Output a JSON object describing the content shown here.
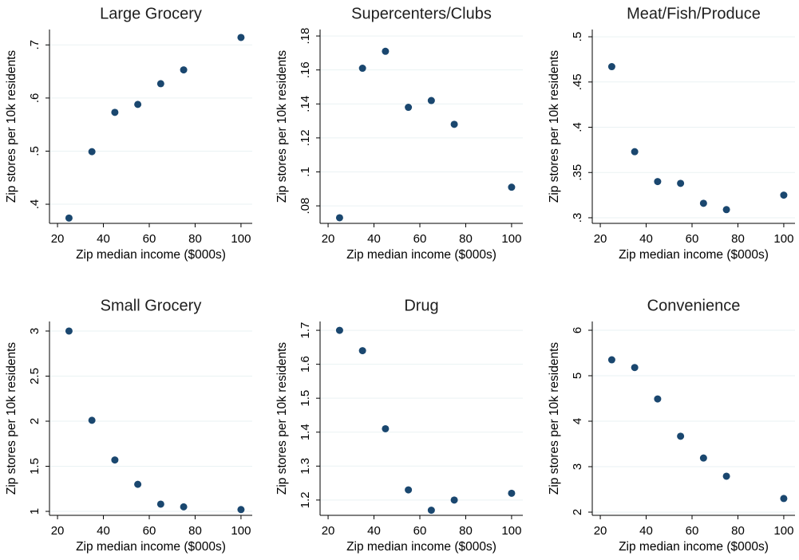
{
  "chart_data": [
    {
      "type": "scatter",
      "title": "Large Grocery",
      "xlabel": "Zip median income ($000s)",
      "ylabel": "Zip stores per 10k residents",
      "x": [
        25,
        35,
        45,
        55,
        65,
        75,
        100
      ],
      "values": [
        0.374,
        0.499,
        0.573,
        0.588,
        0.627,
        0.653,
        0.714
      ],
      "color": "#1a476f",
      "xlim": [
        16.5,
        104.9
      ],
      "ylim": [
        0.364,
        0.729
      ],
      "xticks": [
        20,
        40,
        60,
        80,
        100
      ],
      "yticks": [
        {
          "value": 0.4,
          "label": ".4"
        },
        {
          "value": 0.5,
          "label": ".5"
        },
        {
          "value": 0.6,
          "label": ".6"
        },
        {
          "value": 0.7,
          "label": ".7"
        }
      ],
      "grid": true
    },
    {
      "type": "scatter",
      "title": "Supercenters/Clubs",
      "xlabel": "Zip median income ($000s)",
      "ylabel": "Zip stores per 10k residents",
      "x": [
        25,
        35,
        45,
        55,
        65,
        75,
        100
      ],
      "values": [
        0.073,
        0.161,
        0.171,
        0.138,
        0.142,
        0.128,
        0.091
      ],
      "color": "#1a476f",
      "xlim": [
        16.5,
        104.9
      ],
      "ylim": [
        0.0697,
        0.1838
      ],
      "xticks": [
        20,
        40,
        60,
        80,
        100
      ],
      "yticks": [
        {
          "value": 0.08,
          "label": ".08"
        },
        {
          "value": 0.1,
          "label": ".1"
        },
        {
          "value": 0.12,
          "label": ".12"
        },
        {
          "value": 0.14,
          "label": ".14"
        },
        {
          "value": 0.16,
          "label": ".16"
        },
        {
          "value": 0.18,
          "label": ".18"
        }
      ],
      "grid": true
    },
    {
      "type": "scatter",
      "title": "Meat/Fish/Produce",
      "xlabel": "Zip median income ($000s)",
      "ylabel": "Zip stores per 10k residents",
      "x": [
        25,
        35,
        45,
        55,
        65,
        75,
        100
      ],
      "values": [
        0.467,
        0.373,
        0.34,
        0.338,
        0.316,
        0.309,
        0.325
      ],
      "color": "#1a476f",
      "xlim": [
        16.5,
        104.9
      ],
      "ylim": [
        0.2938,
        0.508
      ],
      "xticks": [
        20,
        40,
        60,
        80,
        100
      ],
      "yticks": [
        {
          "value": 0.3,
          "label": ".3"
        },
        {
          "value": 0.35,
          "label": ".35"
        },
        {
          "value": 0.4,
          "label": ".4"
        },
        {
          "value": 0.45,
          "label": ".45"
        },
        {
          "value": 0.5,
          "label": ".5"
        }
      ],
      "grid": true
    },
    {
      "type": "scatter",
      "title": "Small Grocery",
      "xlabel": "Zip median income ($000s)",
      "ylabel": "Zip stores per 10k residents",
      "x": [
        25,
        35,
        45,
        55,
        65,
        75,
        100
      ],
      "values": [
        3.0,
        2.01,
        1.57,
        1.3,
        1.08,
        1.05,
        1.02
      ],
      "color": "#1a476f",
      "xlim": [
        16.5,
        104.9
      ],
      "ylim": [
        0.956,
        3.106
      ],
      "xticks": [
        20,
        40,
        60,
        80,
        100
      ],
      "yticks": [
        1,
        1.5,
        2,
        2.5,
        3
      ],
      "grid": true
    },
    {
      "type": "scatter",
      "title": "Drug",
      "xlabel": "Zip median income ($000s)",
      "ylabel": "Zip stores per 10k residents",
      "x": [
        25,
        35,
        45,
        55,
        65,
        75,
        100
      ],
      "values": [
        1.7,
        1.64,
        1.41,
        1.23,
        1.17,
        1.2,
        1.22
      ],
      "color": "#1a476f",
      "xlim": [
        16.5,
        104.9
      ],
      "ylim": [
        1.155,
        1.726
      ],
      "xticks": [
        20,
        40,
        60,
        80,
        100
      ],
      "yticks": [
        1.2,
        1.3,
        1.4,
        1.5,
        1.6,
        1.7
      ],
      "grid": true
    },
    {
      "type": "scatter",
      "title": "Convenience",
      "xlabel": "Zip median income ($000s)",
      "ylabel": "Zip stores per 10k residents",
      "x": [
        25,
        35,
        45,
        55,
        65,
        75,
        100
      ],
      "values": [
        5.35,
        5.18,
        4.49,
        3.67,
        3.19,
        2.79,
        2.3
      ],
      "color": "#1a476f",
      "xlim": [
        16.5,
        104.9
      ],
      "ylim": [
        1.93,
        6.193
      ],
      "xticks": [
        20,
        40,
        60,
        80,
        100
      ],
      "yticks": [
        2,
        3,
        4,
        5,
        6
      ],
      "grid": true
    }
  ]
}
